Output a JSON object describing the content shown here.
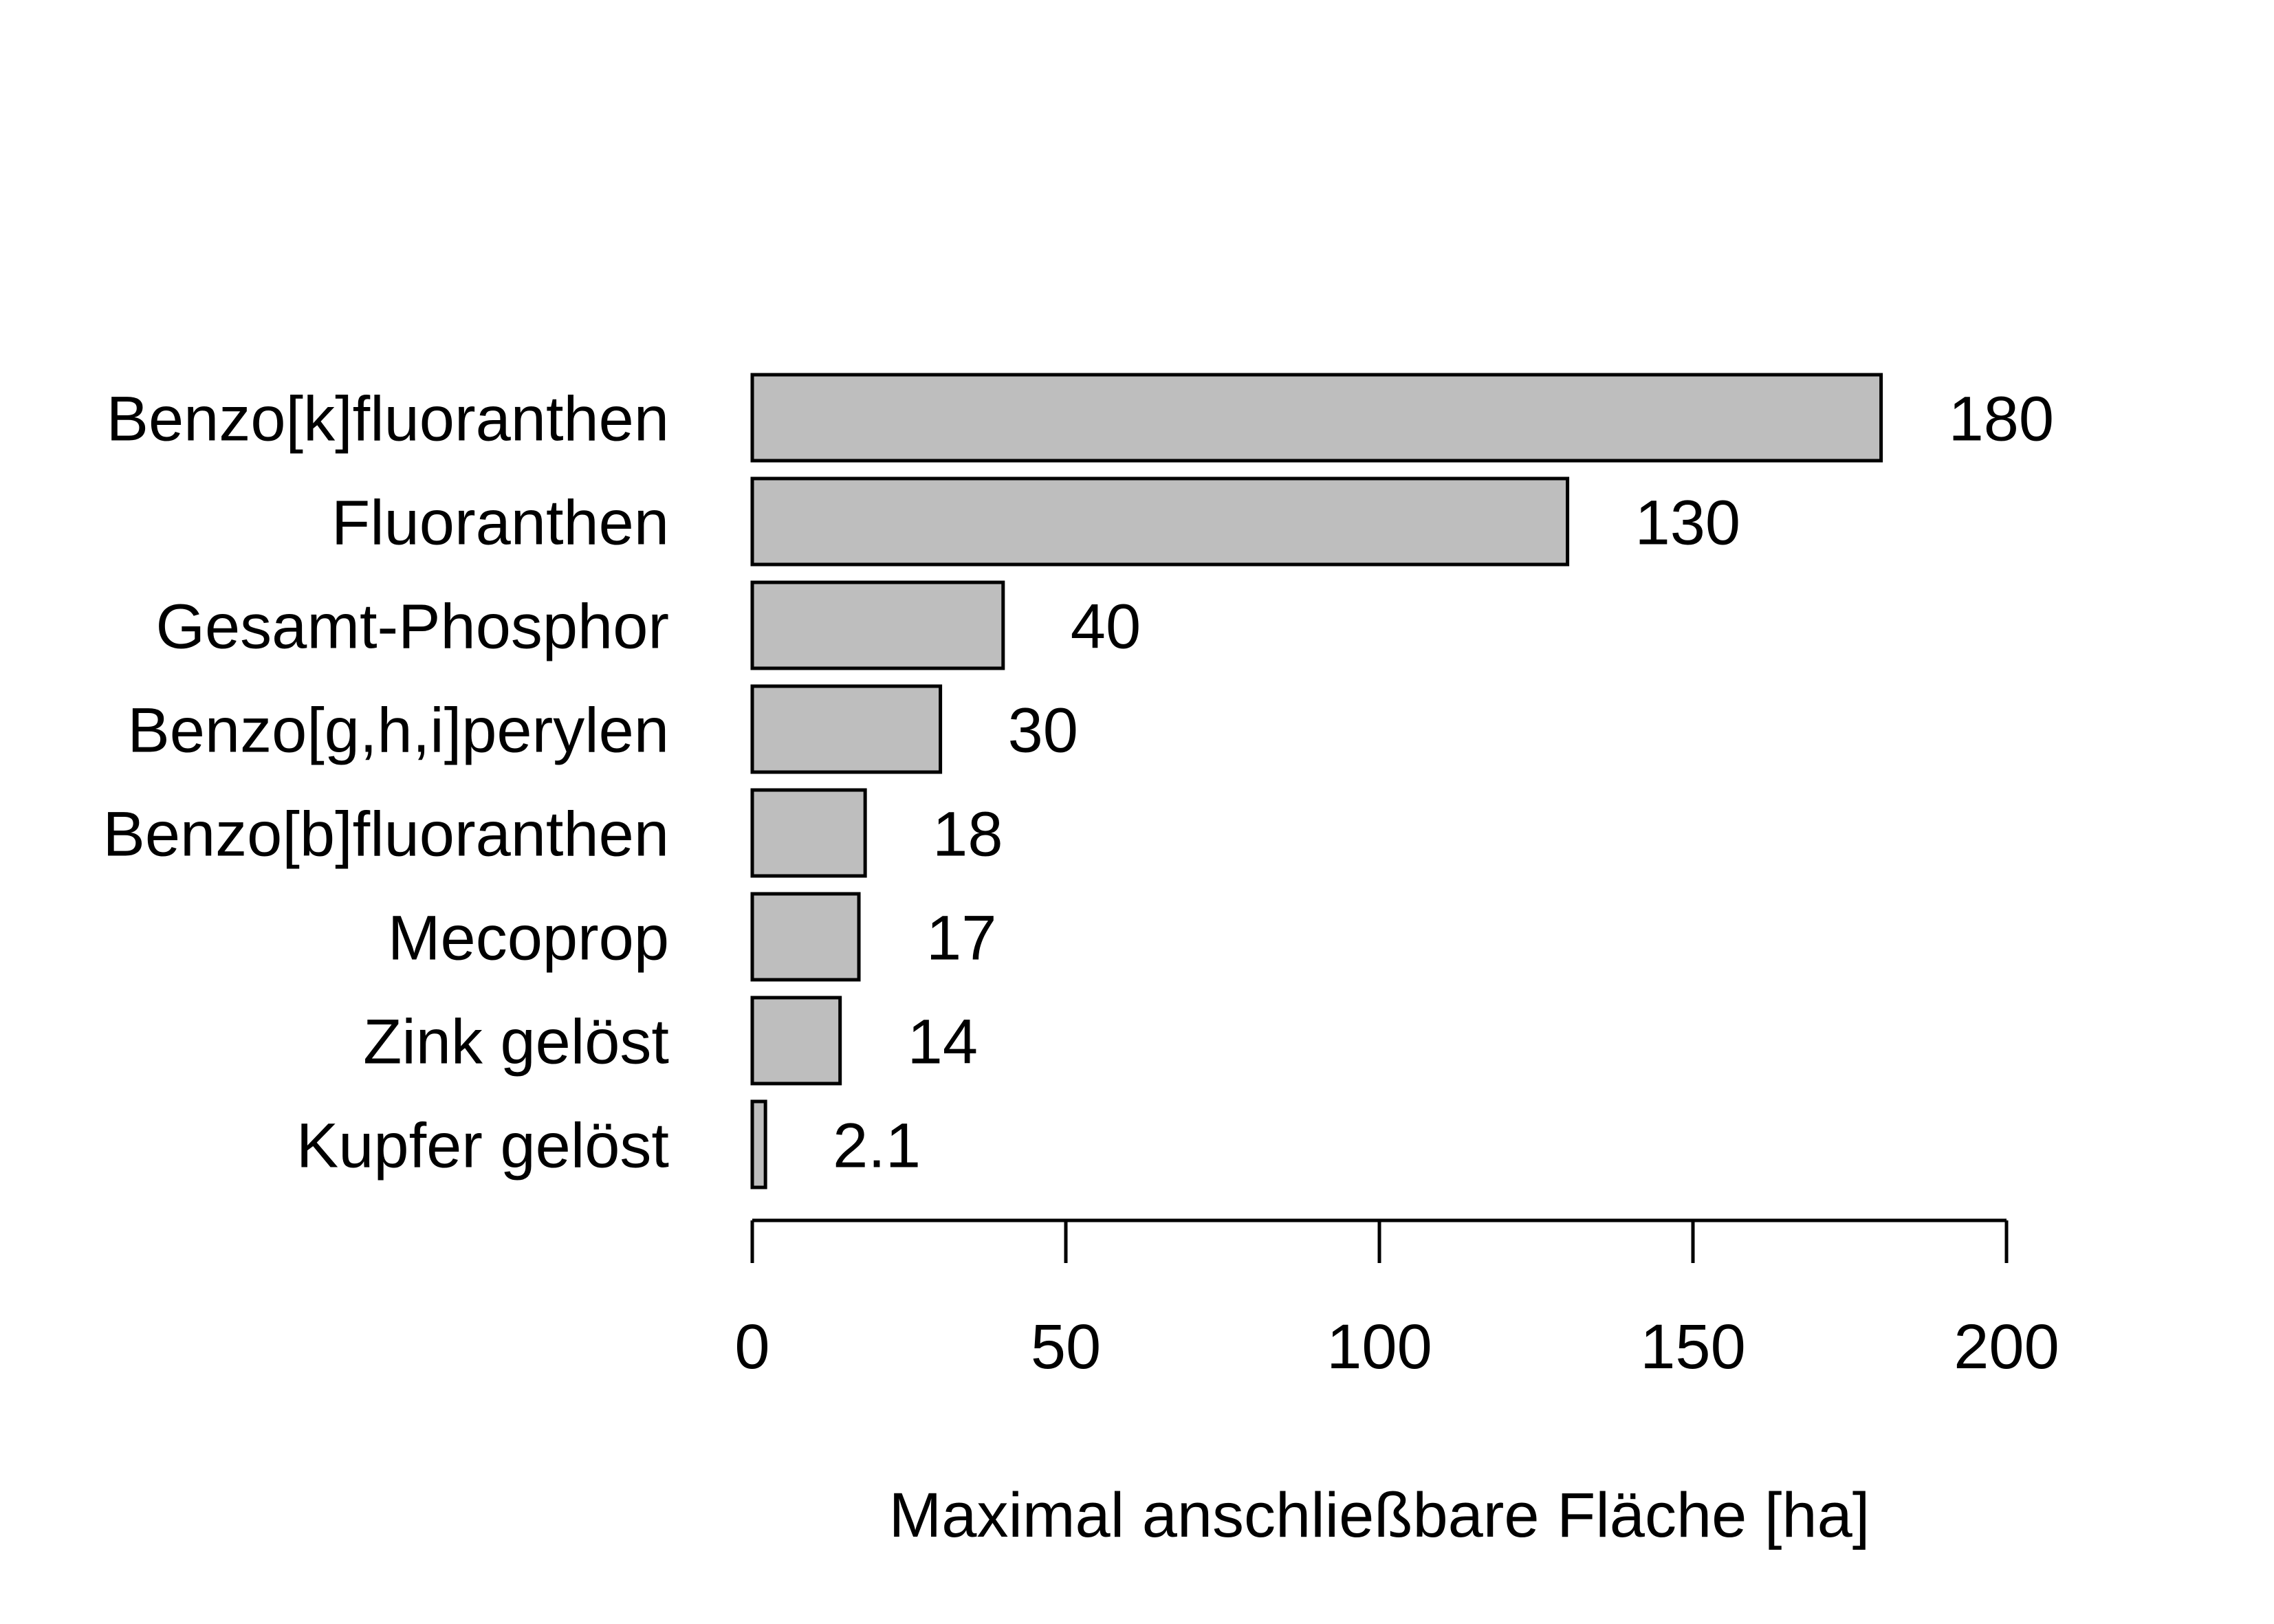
{
  "chart_data": {
    "type": "bar",
    "orientation": "horizontal",
    "categories": [
      "Benzo[k]fluoranthen",
      "Fluoranthen",
      "Gesamt-Phosphor",
      "Benzo[g,h,i]perylen",
      "Benzo[b]fluoranthen",
      "Mecoprop",
      "Zink gelöst",
      "Kupfer gelöst"
    ],
    "values": [
      180,
      130,
      40,
      30,
      18,
      17,
      14,
      2.1
    ],
    "value_labels": [
      "180",
      "130",
      "40",
      "30",
      "18",
      "17",
      "14",
      "2.1"
    ],
    "xlabel": "Maximal anschließbare Fläche [ha]",
    "xlim": [
      0,
      200
    ],
    "xticks": [
      0,
      50,
      100,
      150,
      200
    ],
    "grid": false,
    "bar_color": "#bebebe",
    "edge_color": "#000000"
  }
}
